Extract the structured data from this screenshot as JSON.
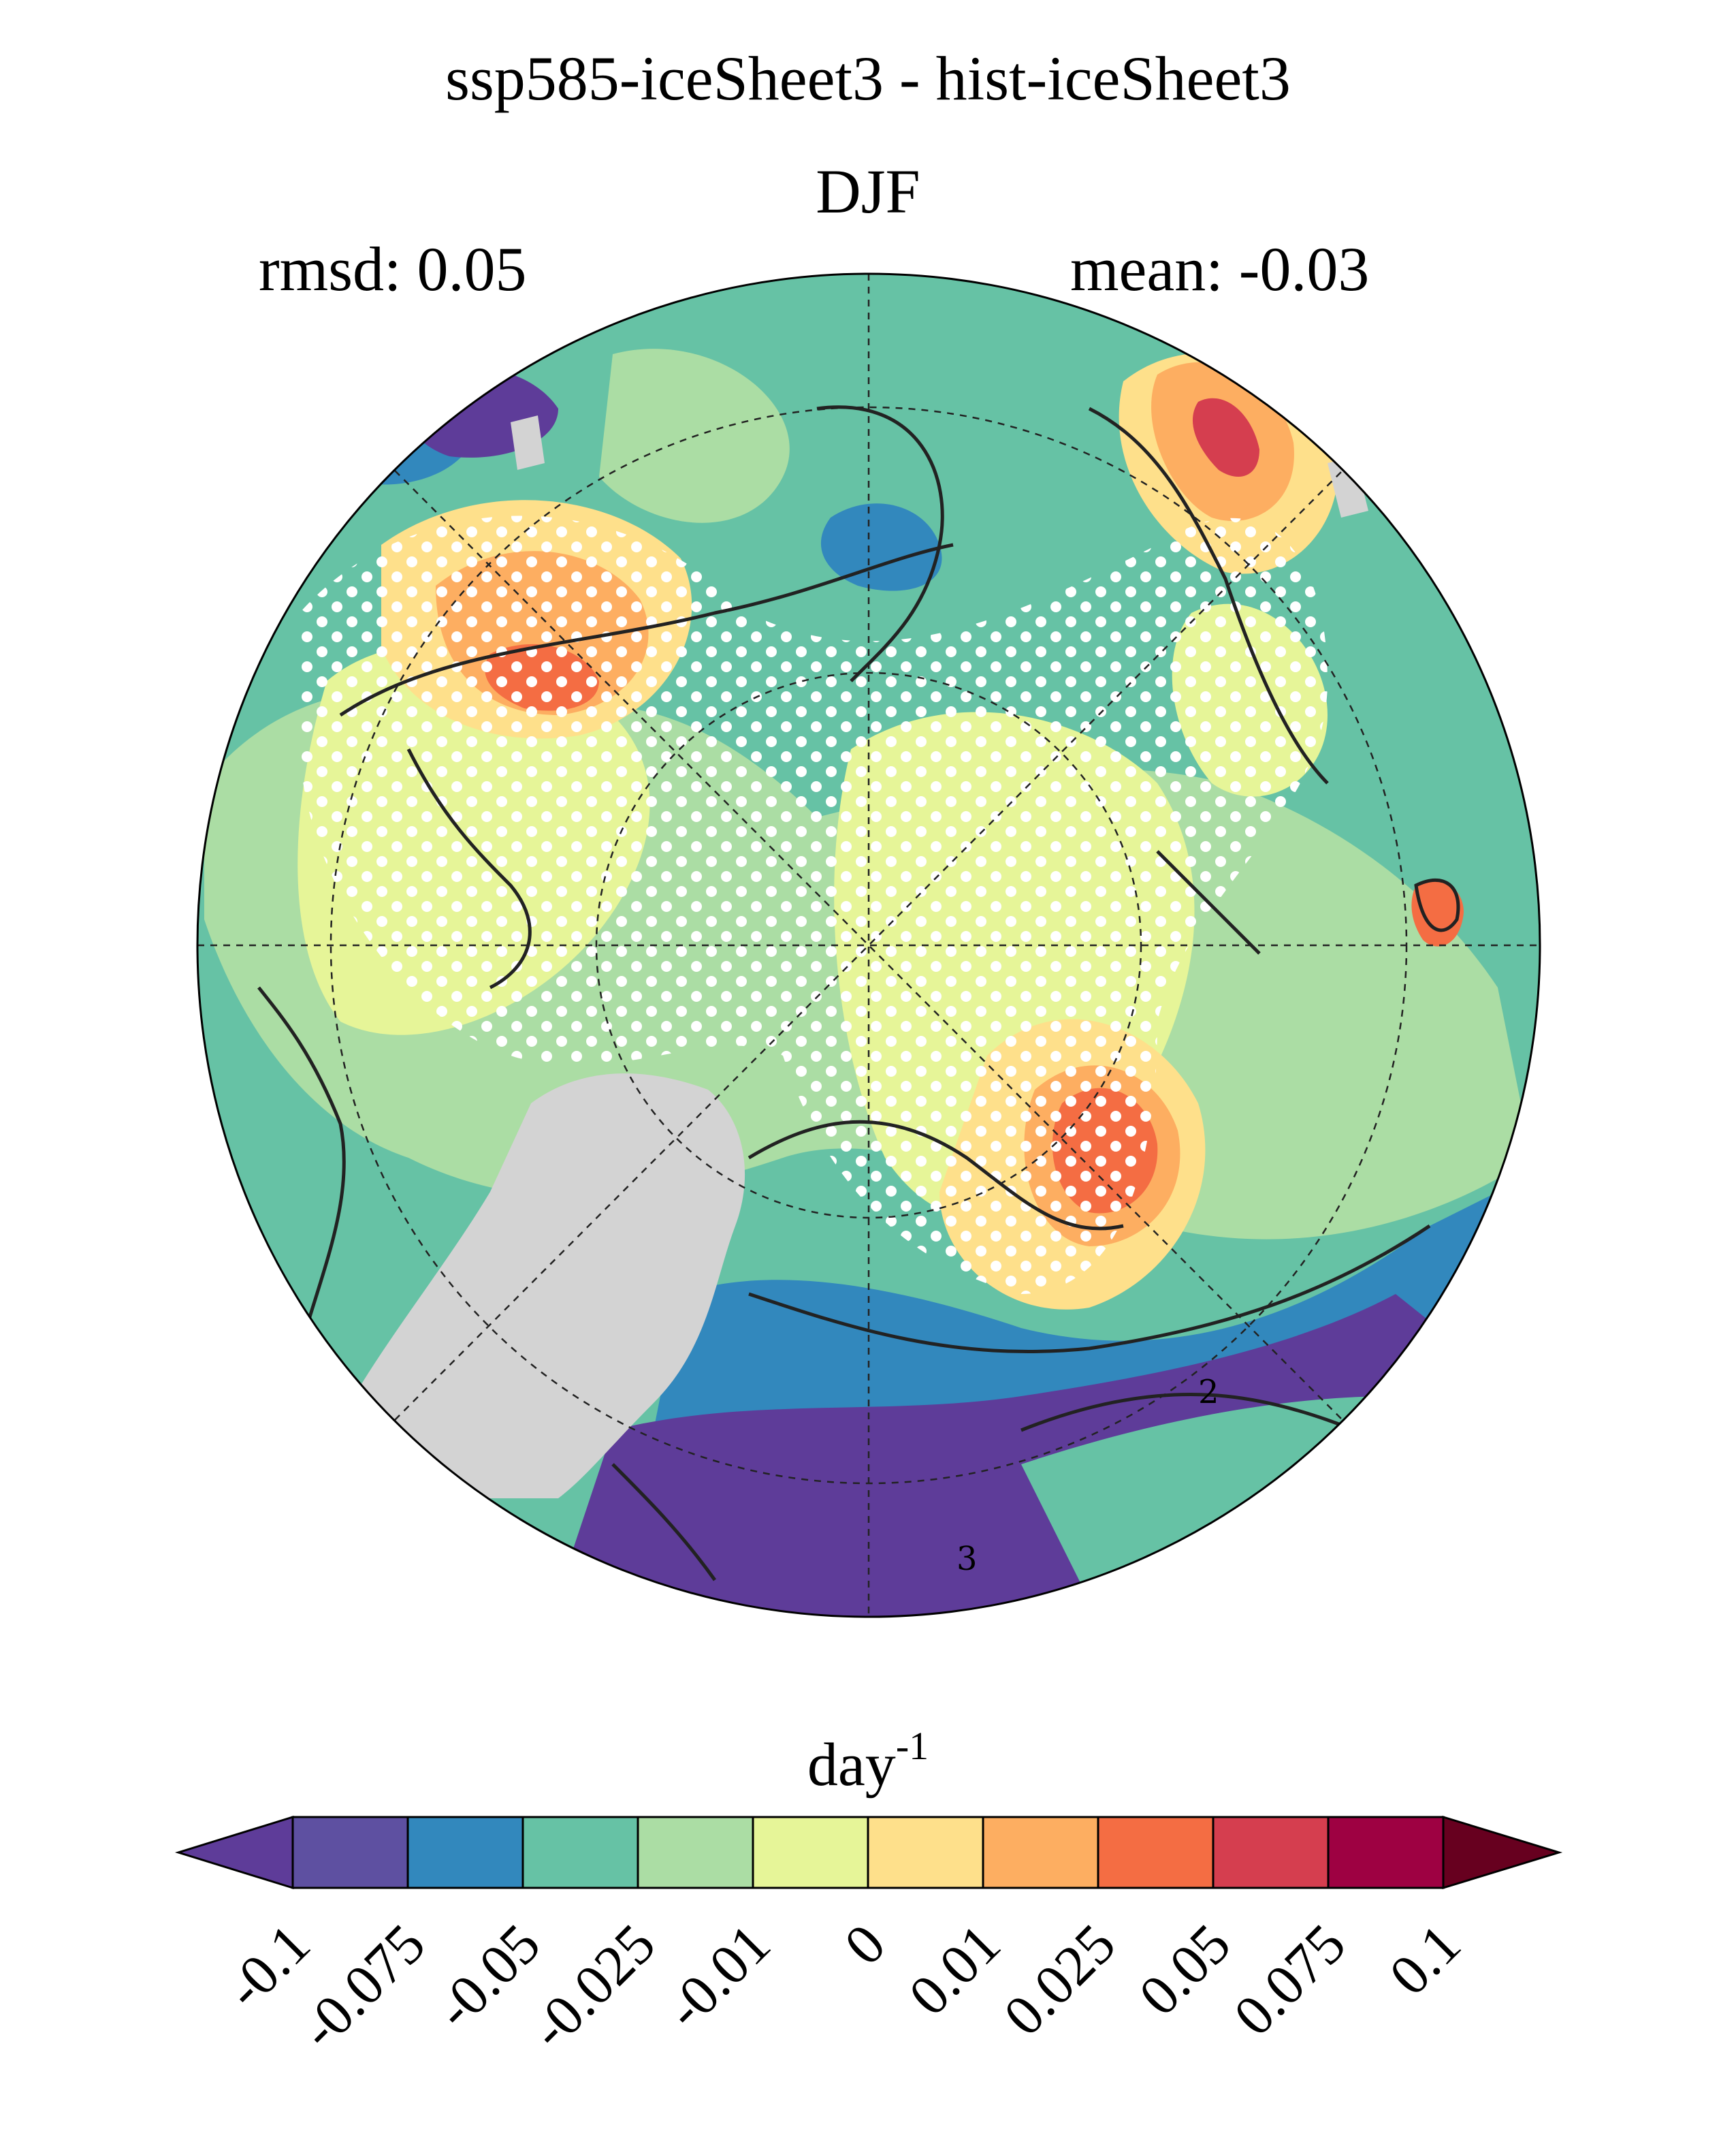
{
  "title": "ssp585-iceSheet3 - hist-iceSheet3",
  "season": "DJF",
  "stats": {
    "rmsd": "rmsd: 0.05",
    "mean": "mean: -0.03"
  },
  "colorbar": {
    "units_base": "day",
    "units_exp": "-1",
    "ticks": [
      "-0.1",
      "-0.075",
      "-0.05",
      "-0.025",
      "-0.01",
      "0",
      "0.01",
      "0.025",
      "0.05",
      "0.075",
      "0.1"
    ],
    "colors": [
      "#5e3c99",
      "#5e50a1",
      "#3288bd",
      "#66c2a5",
      "#abdda4",
      "#e6f598",
      "#fee08b",
      "#fdae61",
      "#f46d43",
      "#d53e4f",
      "#9e0142",
      "#67001f"
    ]
  },
  "map": {
    "projection": "north-polar-stereographic",
    "contour_labels": [
      "2",
      "3"
    ],
    "land_mask_color": "#d3d3d3",
    "stipple_color": "#ffffff"
  }
}
